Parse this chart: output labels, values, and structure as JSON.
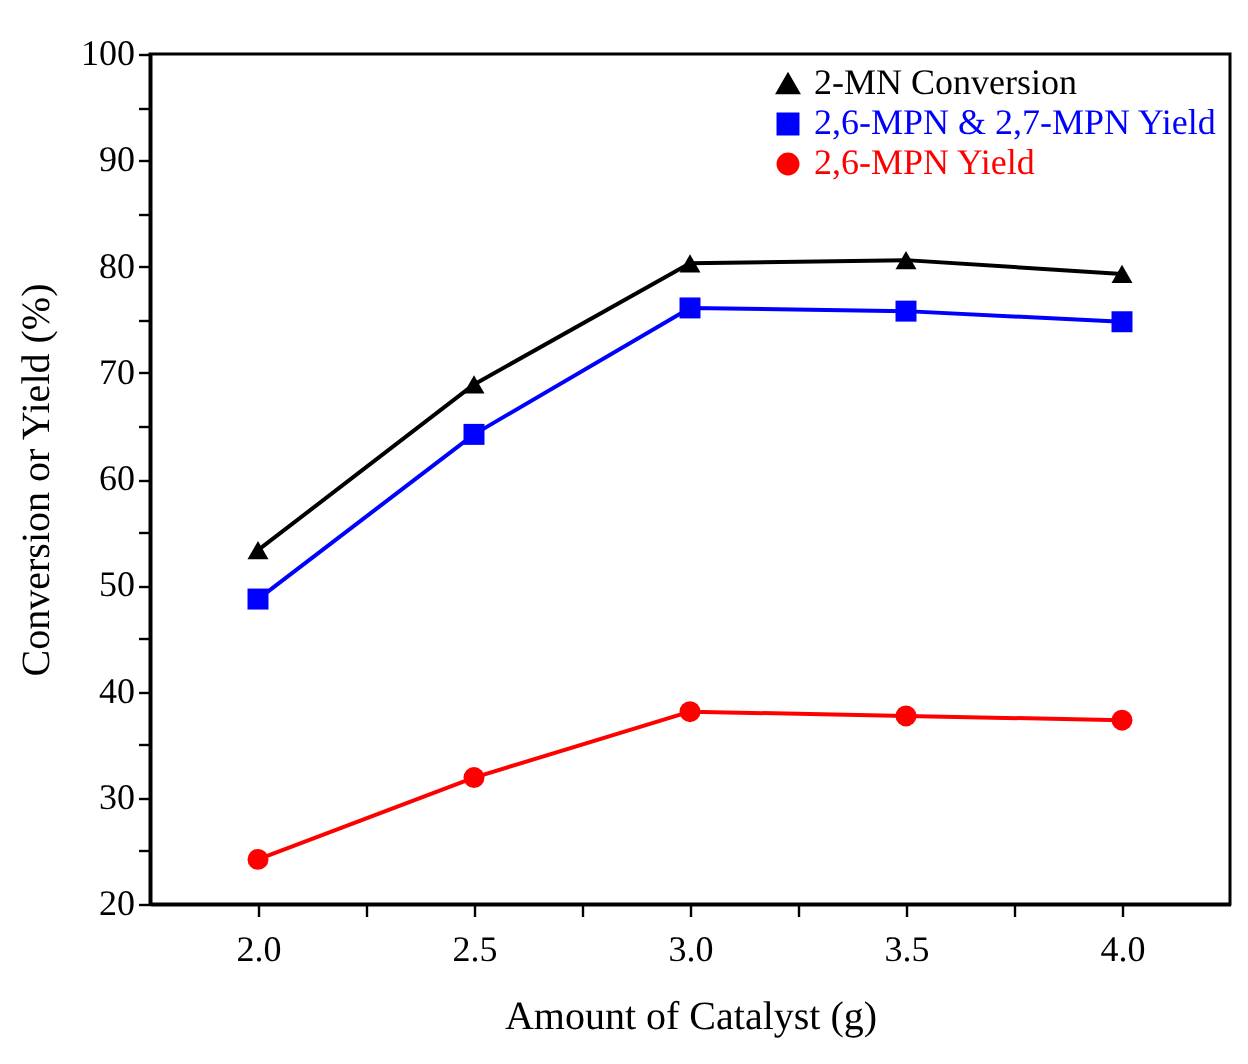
{
  "chart_data": {
    "type": "line",
    "xlabel": "Amount of Catalyst (g)",
    "ylabel": "Conversion or Yield (%)",
    "x": [
      2.0,
      2.5,
      3.0,
      3.5,
      4.0
    ],
    "series": [
      {
        "name": "2-MN Conversion",
        "color": "#000000",
        "marker": "triangle",
        "values": [
          53.3,
          68.9,
          80.3,
          80.6,
          79.3
        ]
      },
      {
        "name": "2,6-MPN & 2,7-MPN Yield",
        "color": "#0000ff",
        "marker": "square",
        "values": [
          48.7,
          64.2,
          76.1,
          75.8,
          74.8
        ]
      },
      {
        "name": "2,6-MPN Yield",
        "color": "#ff0000",
        "marker": "circle",
        "values": [
          24.2,
          31.9,
          38.1,
          37.7,
          37.3
        ]
      }
    ],
    "xlim": [
      1.75,
      4.25
    ],
    "xticks": [
      {
        "value": 2,
        "label": "2.0"
      },
      {
        "value": 2.25,
        "label": null
      },
      {
        "value": 2.5,
        "label": "2.5"
      },
      {
        "value": 2.75,
        "label": null
      },
      {
        "value": 3,
        "label": "3.0"
      },
      {
        "value": 3.25,
        "label": null
      },
      {
        "value": 3.5,
        "label": "3.5"
      },
      {
        "value": 3.75,
        "label": null
      },
      {
        "value": 4,
        "label": "4.0"
      }
    ],
    "ylim": [
      20,
      100
    ],
    "yticks": [
      20,
      {
        "value": 25,
        "label": null
      },
      30,
      {
        "value": 35,
        "label": null
      },
      40,
      {
        "value": 45,
        "label": null
      },
      50,
      {
        "value": 55,
        "label": null
      },
      60,
      {
        "value": 65,
        "label": null
      },
      70,
      {
        "value": 75,
        "label": null
      },
      80,
      {
        "value": 85,
        "label": null
      },
      90,
      {
        "value": 95,
        "label": null
      },
      100
    ],
    "grid": false,
    "legend": "top right",
    "line_style": "solid"
  }
}
